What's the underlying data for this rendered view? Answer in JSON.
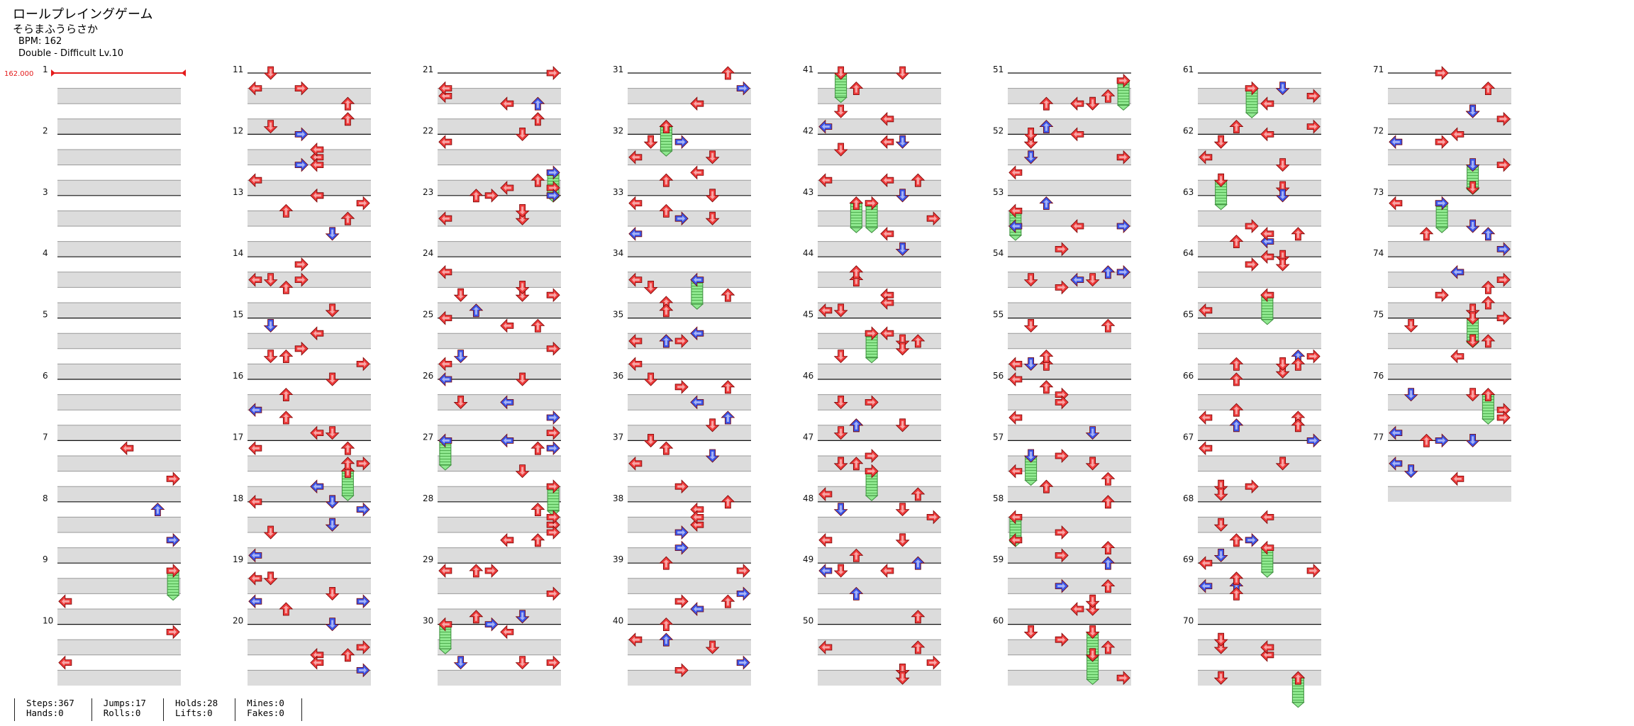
{
  "song": {
    "title": "ロールプレイングゲーム",
    "artist": "そらまふうらさか",
    "bpm_text": "BPM: 162",
    "difficulty_text": "Double - Difficult  Lv.10"
  },
  "bpm_marker": "162.000",
  "measure_numbers": [
    "1",
    "2",
    "3",
    "4",
    "5",
    "6",
    "7",
    "8",
    "9",
    "10",
    "11",
    "12",
    "13",
    "14",
    "15",
    "16",
    "17",
    "18",
    "19",
    "20",
    "21",
    "22",
    "23",
    "24",
    "25",
    "26",
    "27",
    "28",
    "29",
    "30",
    "31",
    "32",
    "33",
    "34",
    "35",
    "36",
    "37",
    "38",
    "39",
    "40",
    "41",
    "42",
    "43",
    "44",
    "45",
    "46",
    "47",
    "48",
    "49",
    "50",
    "51",
    "52",
    "53",
    "54",
    "55",
    "56",
    "57",
    "58",
    "59",
    "60",
    "61",
    "62",
    "63",
    "64",
    "65",
    "66",
    "67",
    "68",
    "69",
    "70",
    "71",
    "72",
    "73",
    "74",
    "75",
    "76",
    "77"
  ],
  "colors": {
    "quarter": "#ee3b3b",
    "eighth": "#3a55e8",
    "hold": "#7fe07f"
  },
  "stats": {
    "steps": "Steps:367",
    "hands": "Hands:0",
    "jumps": "Jumps:17",
    "rolls": "Rolls:0",
    "holds": "Holds:28",
    "lifts": "Lifts:0",
    "mines": "Mines:0",
    "fakes": "Fakes:0"
  }
}
